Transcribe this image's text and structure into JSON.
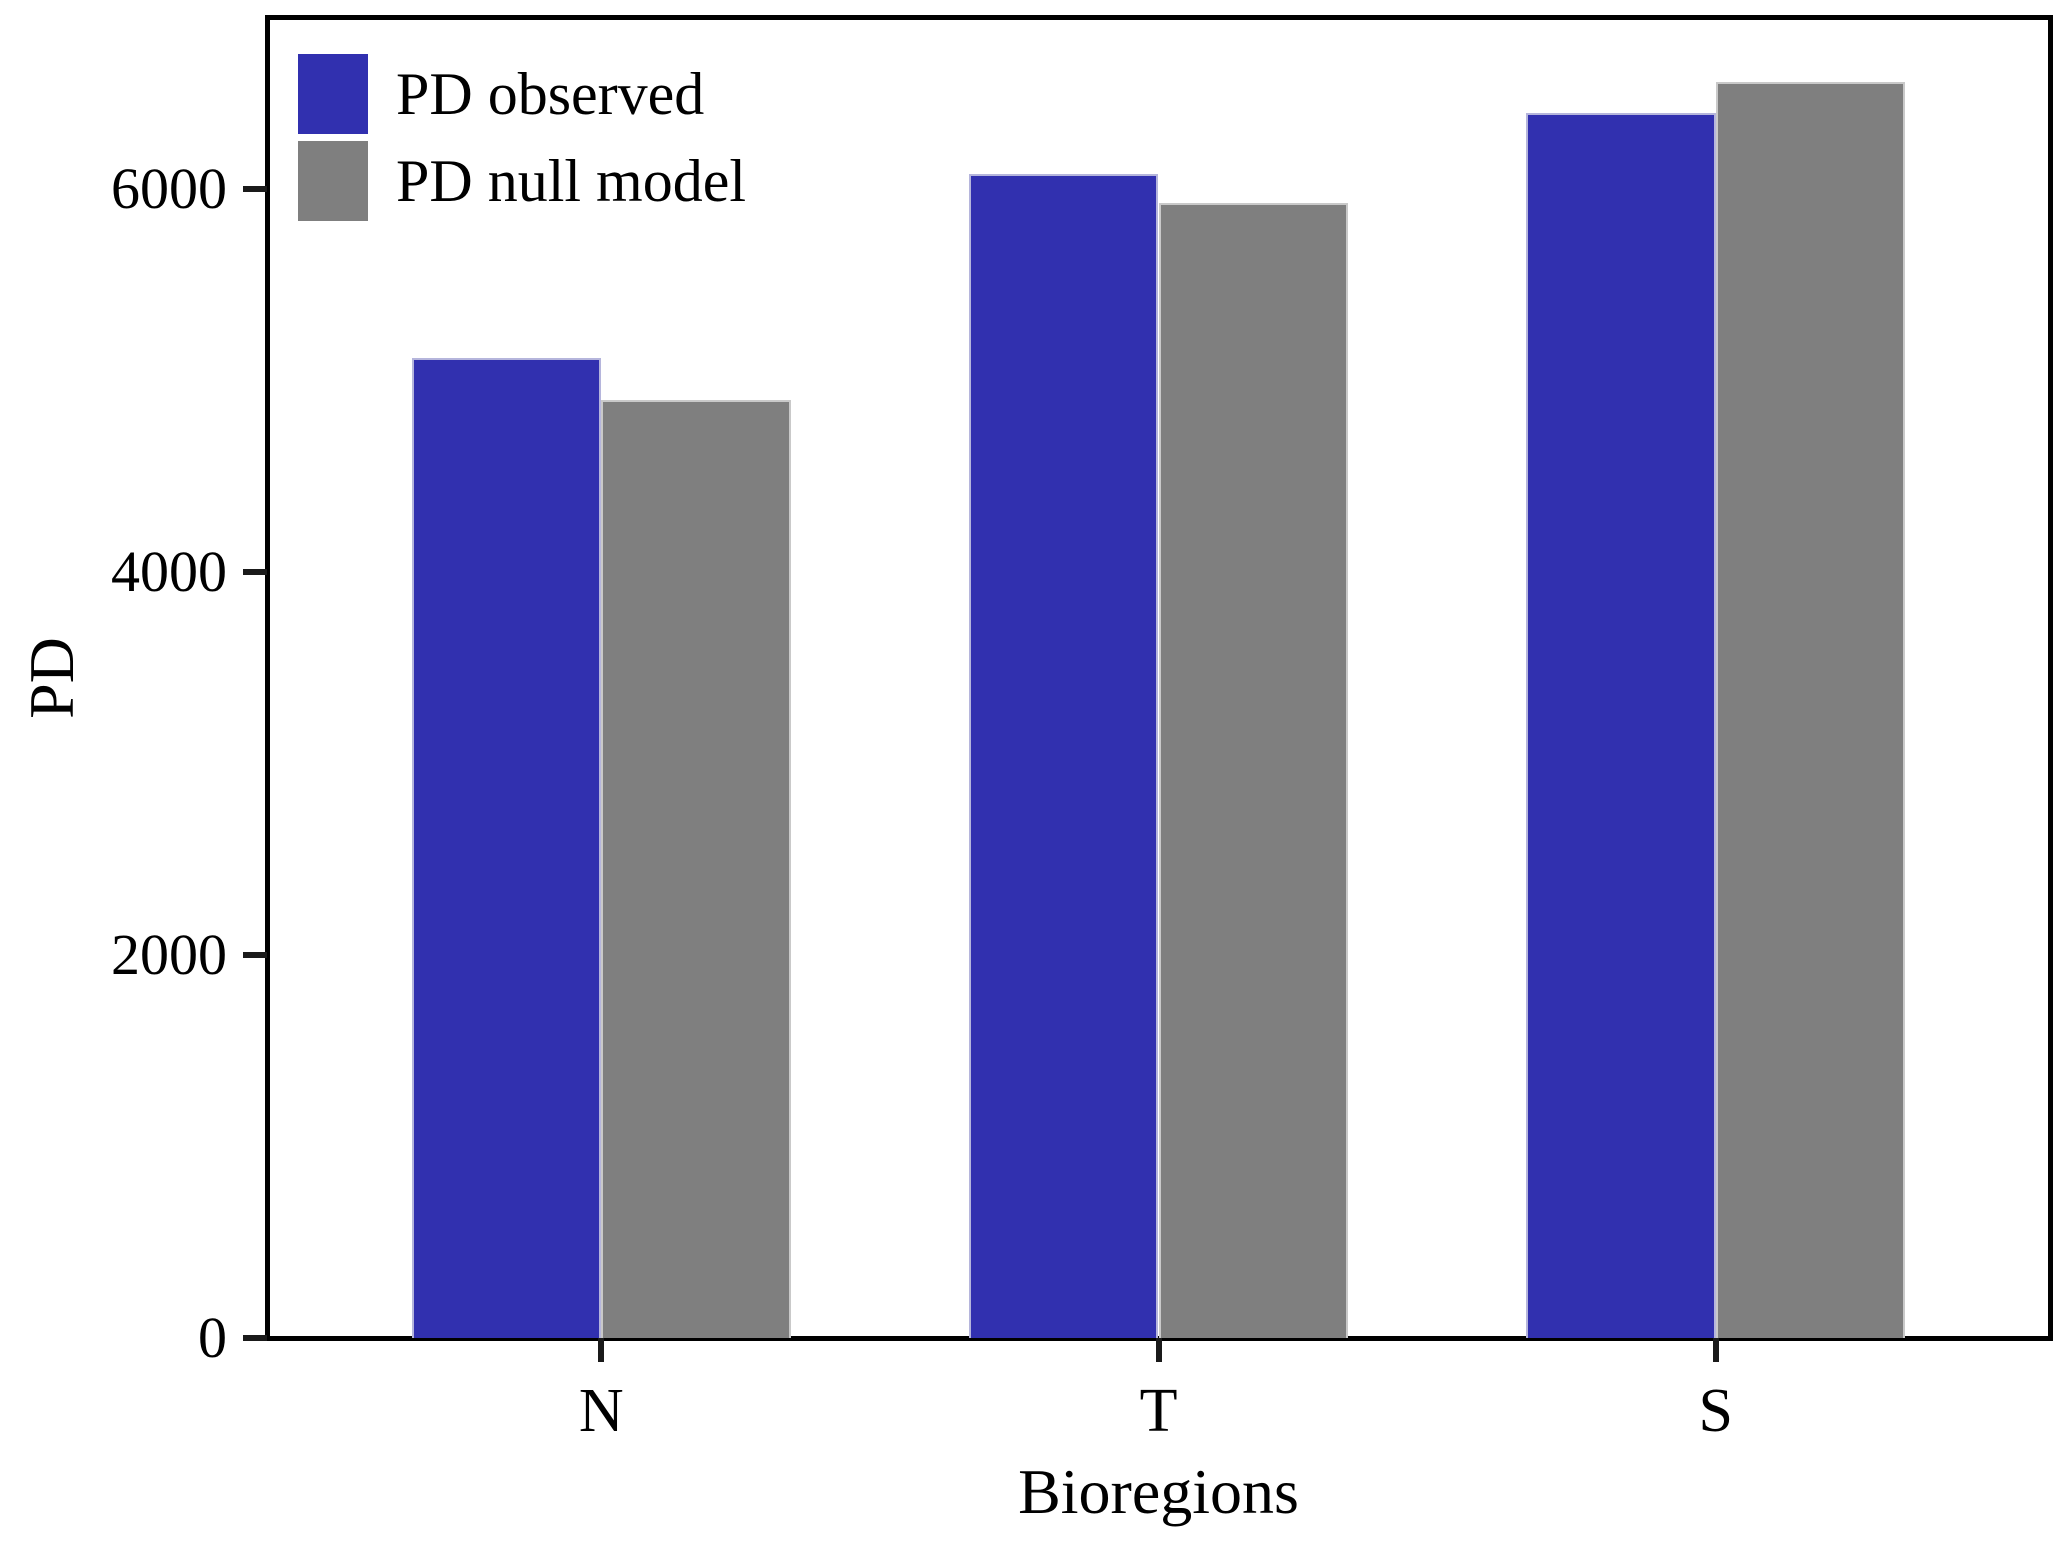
{
  "chart_data": {
    "type": "bar",
    "title": "",
    "xlabel": "Bioregions",
    "ylabel": "PD",
    "categories": [
      "N",
      "T",
      "S"
    ],
    "series": [
      {
        "name": "PD observed",
        "color": "#3130AF",
        "edge_color": "#b5b5dc",
        "values": [
          5120,
          6080,
          6400
        ]
      },
      {
        "name": "PD null model",
        "color": "#7F7F7F",
        "edge_color": "#c9c9c9",
        "values": [
          4900,
          5930,
          6560
        ]
      }
    ],
    "ylim": [
      0,
      6900
    ],
    "yticks": [
      0,
      2000,
      4000,
      6000
    ],
    "xlim": [
      -0.6,
      2.6
    ],
    "bar_width_data_units": 0.34,
    "grid": false,
    "legend_position": "upper-left-inside",
    "axis_color": "#000000",
    "tick_color": "#1a1a1a",
    "background_color": "#ffffff"
  }
}
